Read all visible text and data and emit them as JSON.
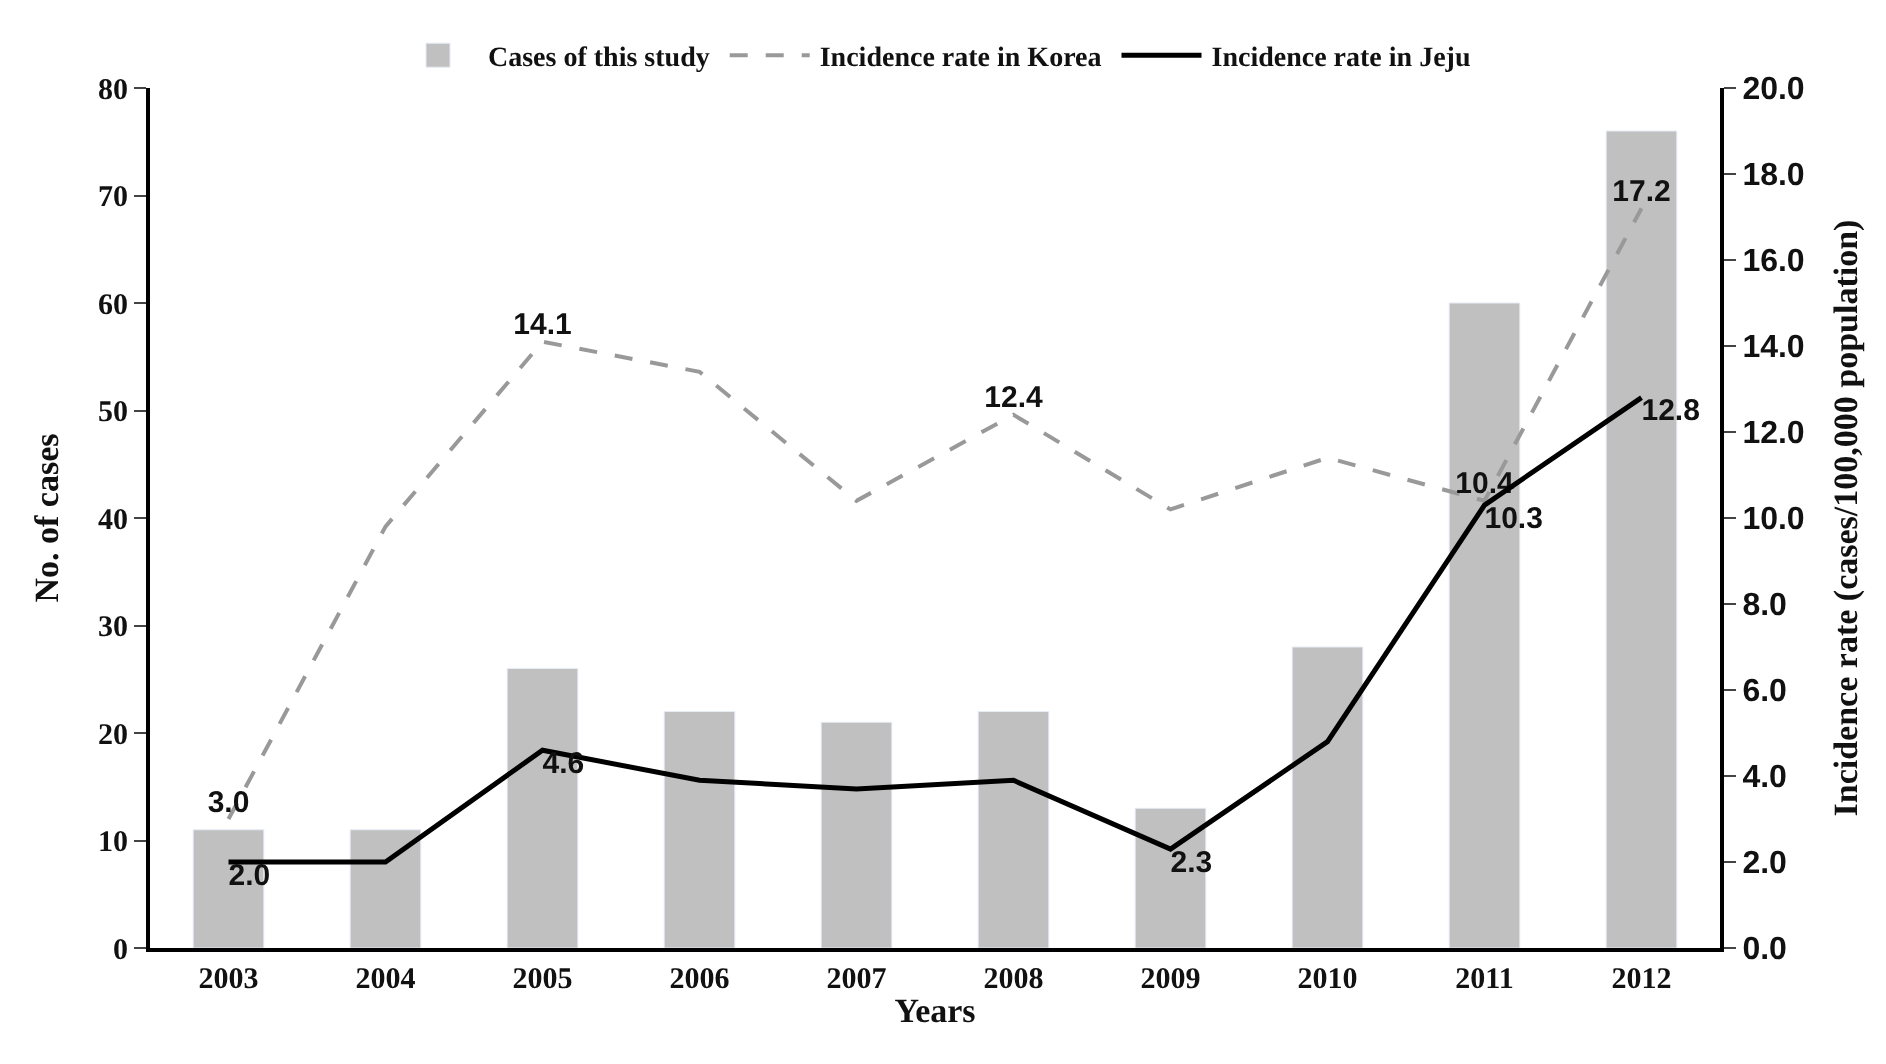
{
  "chart_data": {
    "type": "bar",
    "xlabel": "Years",
    "ylabel": "No. of cases",
    "y2label": "Incidence rate (cases/100,000 population)",
    "categories": [
      "2003",
      "2004",
      "2005",
      "2006",
      "2007",
      "2008",
      "2009",
      "2010",
      "2011",
      "2012"
    ],
    "series": [
      {
        "name": "Cases of this study",
        "color": "#c0c0c0",
        "values": [
          11,
          11,
          26,
          22,
          21,
          22,
          13,
          28,
          60,
          76
        ]
      },
      {
        "name": "Incidence rate in Korea",
        "type": "line",
        "axis": "y2",
        "color": "#999999",
        "line_style": "dashed",
        "marker": "none",
        "values": [
          3.0,
          9.8,
          14.1,
          13.4,
          10.4,
          12.4,
          10.2,
          11.4,
          10.4,
          17.2
        ],
        "value_labels": [
          "3.0",
          null,
          "14.1",
          null,
          null,
          "12.4",
          null,
          null,
          "10.4",
          "17.2"
        ]
      },
      {
        "name": "Incidence rate in Jeju",
        "type": "line",
        "axis": "y2",
        "color": "#000000",
        "line_style": "solid",
        "marker": "none",
        "values": [
          2.0,
          2.0,
          4.6,
          3.9,
          3.7,
          3.9,
          2.3,
          4.8,
          10.3,
          12.8
        ],
        "value_labels": [
          "2.0",
          null,
          "4.6",
          null,
          null,
          null,
          "2.3",
          null,
          "10.3",
          "12.8"
        ]
      }
    ],
    "ylim": [
      0,
      80
    ],
    "yticks": [
      0,
      10,
      20,
      30,
      40,
      50,
      60,
      70,
      80
    ],
    "y2lim": [
      0,
      20
    ],
    "y2ticks": [
      {
        "value": 0,
        "label": "0.0"
      },
      {
        "value": 2,
        "label": "2.0"
      },
      {
        "value": 4,
        "label": "4.0"
      },
      {
        "value": 6,
        "label": "6.0"
      },
      {
        "value": 8,
        "label": "8.0"
      },
      {
        "value": 10,
        "label": "10.0"
      },
      {
        "value": 12,
        "label": "12.0"
      },
      {
        "value": 14,
        "label": "14.0"
      },
      {
        "value": 16,
        "label": "16.0"
      },
      {
        "value": 18,
        "label": "18.0"
      },
      {
        "value": 20,
        "label": "20.0"
      }
    ],
    "legend": "top"
  }
}
